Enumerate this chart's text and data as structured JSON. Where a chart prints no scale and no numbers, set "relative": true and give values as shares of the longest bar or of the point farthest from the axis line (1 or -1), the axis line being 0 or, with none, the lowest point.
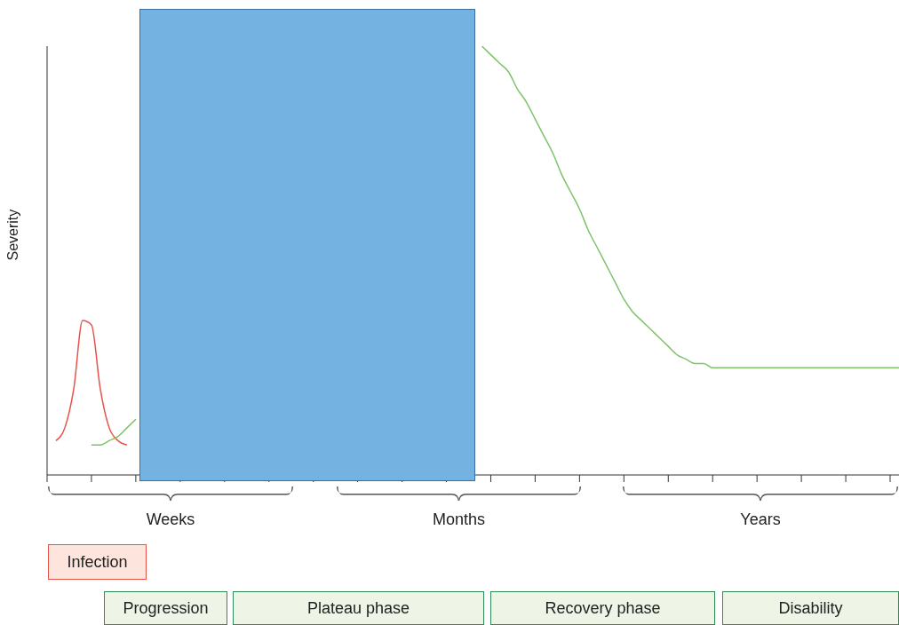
{
  "chart_data": {
    "type": "line",
    "relative": true,
    "ylabel": "Severity",
    "grid": false,
    "legend": false,
    "categories": [
      null,
      null,
      null,
      null,
      null,
      null,
      null,
      null,
      null,
      null,
      null,
      null,
      null,
      null,
      null,
      null,
      null,
      null,
      null,
      null,
      null,
      null,
      null,
      null,
      null,
      null,
      null,
      null,
      null,
      null,
      null,
      null,
      null,
      null,
      null,
      null,
      null,
      null,
      null,
      null,
      null,
      null,
      null,
      null,
      null,
      null,
      null,
      null,
      null,
      null,
      null,
      null,
      null,
      null,
      null,
      null,
      null,
      null,
      null,
      null,
      null,
      null,
      null,
      null,
      null,
      null,
      null,
      null,
      null,
      null,
      null,
      null,
      null,
      null,
      null,
      null,
      null,
      null,
      null,
      null,
      null,
      null,
      null,
      null,
      null,
      null,
      null,
      null,
      null,
      null,
      null,
      null,
      null,
      null,
      null,
      null,
      null
    ],
    "series": [
      {
        "color": "#e8524a",
        "values": [
          null,
          0.08,
          0.11,
          0.2,
          0.36,
          0.35,
          0.2,
          0.11,
          0.08,
          0.07,
          null,
          null,
          null,
          null,
          null,
          null,
          null,
          null,
          null,
          null,
          null,
          null,
          null,
          null,
          null,
          null,
          null,
          null,
          null,
          null,
          null,
          null,
          null,
          null,
          null,
          null,
          null,
          null,
          null,
          null,
          null,
          null,
          null,
          null,
          null,
          null,
          null,
          null,
          null,
          null,
          null,
          null,
          null,
          null,
          null,
          null,
          null,
          null,
          null,
          null,
          null,
          null,
          null,
          null,
          null,
          null,
          null,
          null,
          null,
          null,
          null,
          null,
          null,
          null,
          null,
          null,
          null,
          null,
          null,
          null,
          null,
          null,
          null,
          null,
          null,
          null,
          null,
          null,
          null,
          null,
          null,
          null,
          null,
          null,
          null,
          null,
          null
        ]
      },
      {
        "color": "#7dc36a",
        "values": [
          null,
          null,
          null,
          null,
          null,
          0.07,
          0.07,
          0.08,
          0.09,
          0.11,
          0.13,
          null,
          null,
          null,
          null,
          null,
          null,
          null,
          null,
          null,
          null,
          null,
          null,
          null,
          null,
          null,
          null,
          null,
          null,
          null,
          null,
          null,
          null,
          null,
          null,
          null,
          null,
          null,
          null,
          null,
          null,
          null,
          null,
          null,
          null,
          null,
          null,
          null,
          null,
          1,
          0.98,
          0.96,
          0.94,
          0.9,
          0.87,
          0.83,
          0.79,
          0.75,
          0.7,
          0.66,
          0.62,
          0.57,
          0.53,
          0.49,
          0.45,
          0.41,
          0.38,
          0.36,
          0.34,
          0.32,
          0.3,
          0.28,
          0.27,
          0.26,
          0.26,
          0.25,
          0.25,
          0.25,
          0.25,
          0.25,
          0.25,
          0.25,
          0.25,
          0.25,
          0.25,
          0.25,
          0.25,
          0.25,
          0.25,
          0.25,
          0.25,
          0.25,
          0.25,
          0.25,
          0.25,
          0.25,
          0.25
        ]
      }
    ],
    "annotations": [
      "Weeks",
      "Months",
      "Years",
      "Infection",
      "Progression",
      "Plateau phase",
      "Recovery phase",
      "Disability"
    ]
  }
}
